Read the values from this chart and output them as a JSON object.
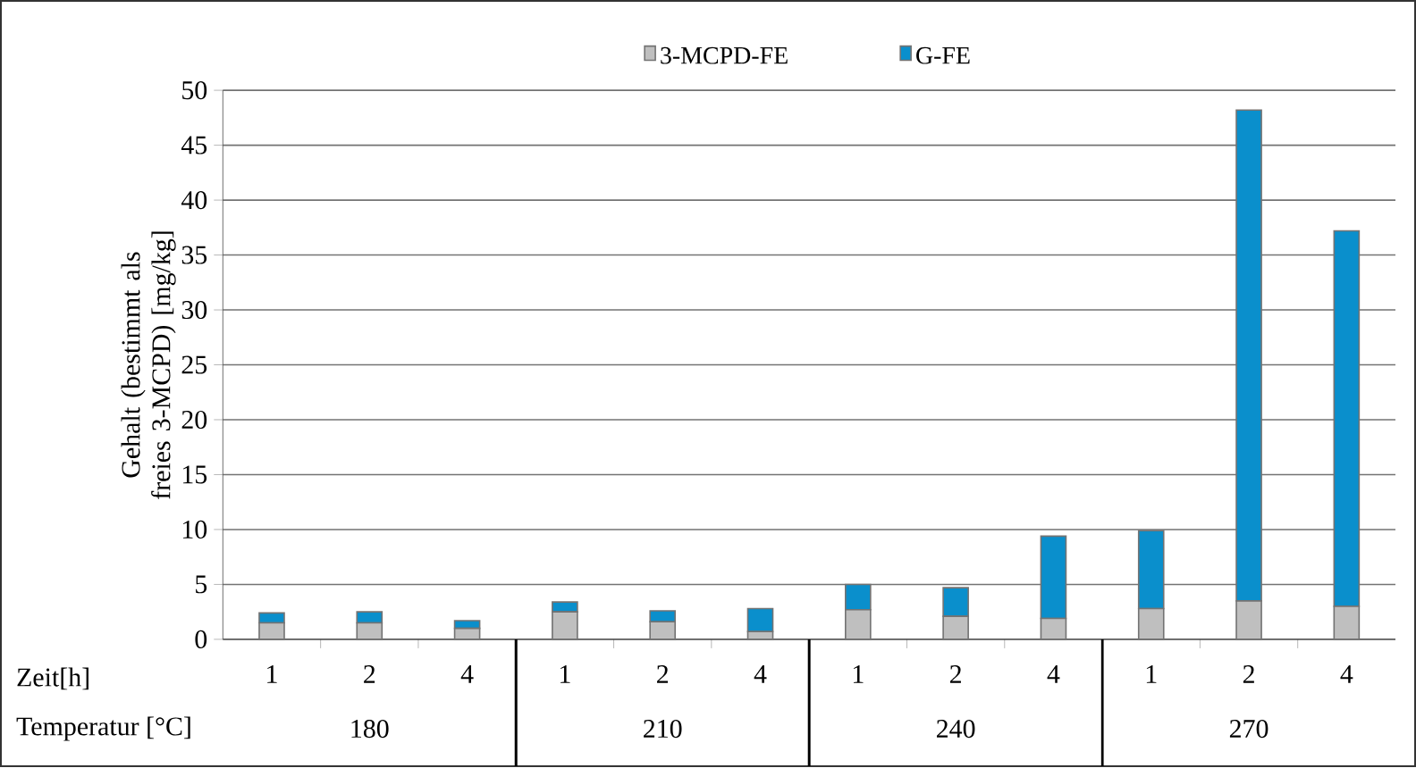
{
  "chart_data": {
    "type": "bar",
    "stacked": true,
    "ylabel": "Gehalt (bestimmt als freies 3-MCPD) [mg/kg]",
    "categories": [
      "1",
      "2",
      "4",
      "1",
      "2",
      "4",
      "1",
      "2",
      "4",
      "1",
      "2",
      "4"
    ],
    "series": [
      {
        "name": "3-MCPD-FE",
        "color": "#bfbfbf",
        "values": [
          1.5,
          1.5,
          1.0,
          2.5,
          1.6,
          0.7,
          2.7,
          2.1,
          1.9,
          2.8,
          3.5,
          3.0
        ]
      },
      {
        "name": "G-FE",
        "color": "#0a8fcc",
        "values": [
          0.9,
          1.0,
          0.7,
          0.9,
          1.0,
          2.1,
          2.3,
          2.6,
          7.5,
          7.1,
          44.7,
          34.2
        ]
      }
    ],
    "ylim": [
      0,
      50
    ],
    "yticks": [
      0,
      5,
      10,
      15,
      20,
      25,
      30,
      35,
      40,
      45,
      50
    ],
    "grid": "y",
    "legend": "top",
    "annotations": [
      "Zeit[h]",
      "Temperatur [°C]",
      "180",
      "210",
      "240",
      "270"
    ]
  }
}
